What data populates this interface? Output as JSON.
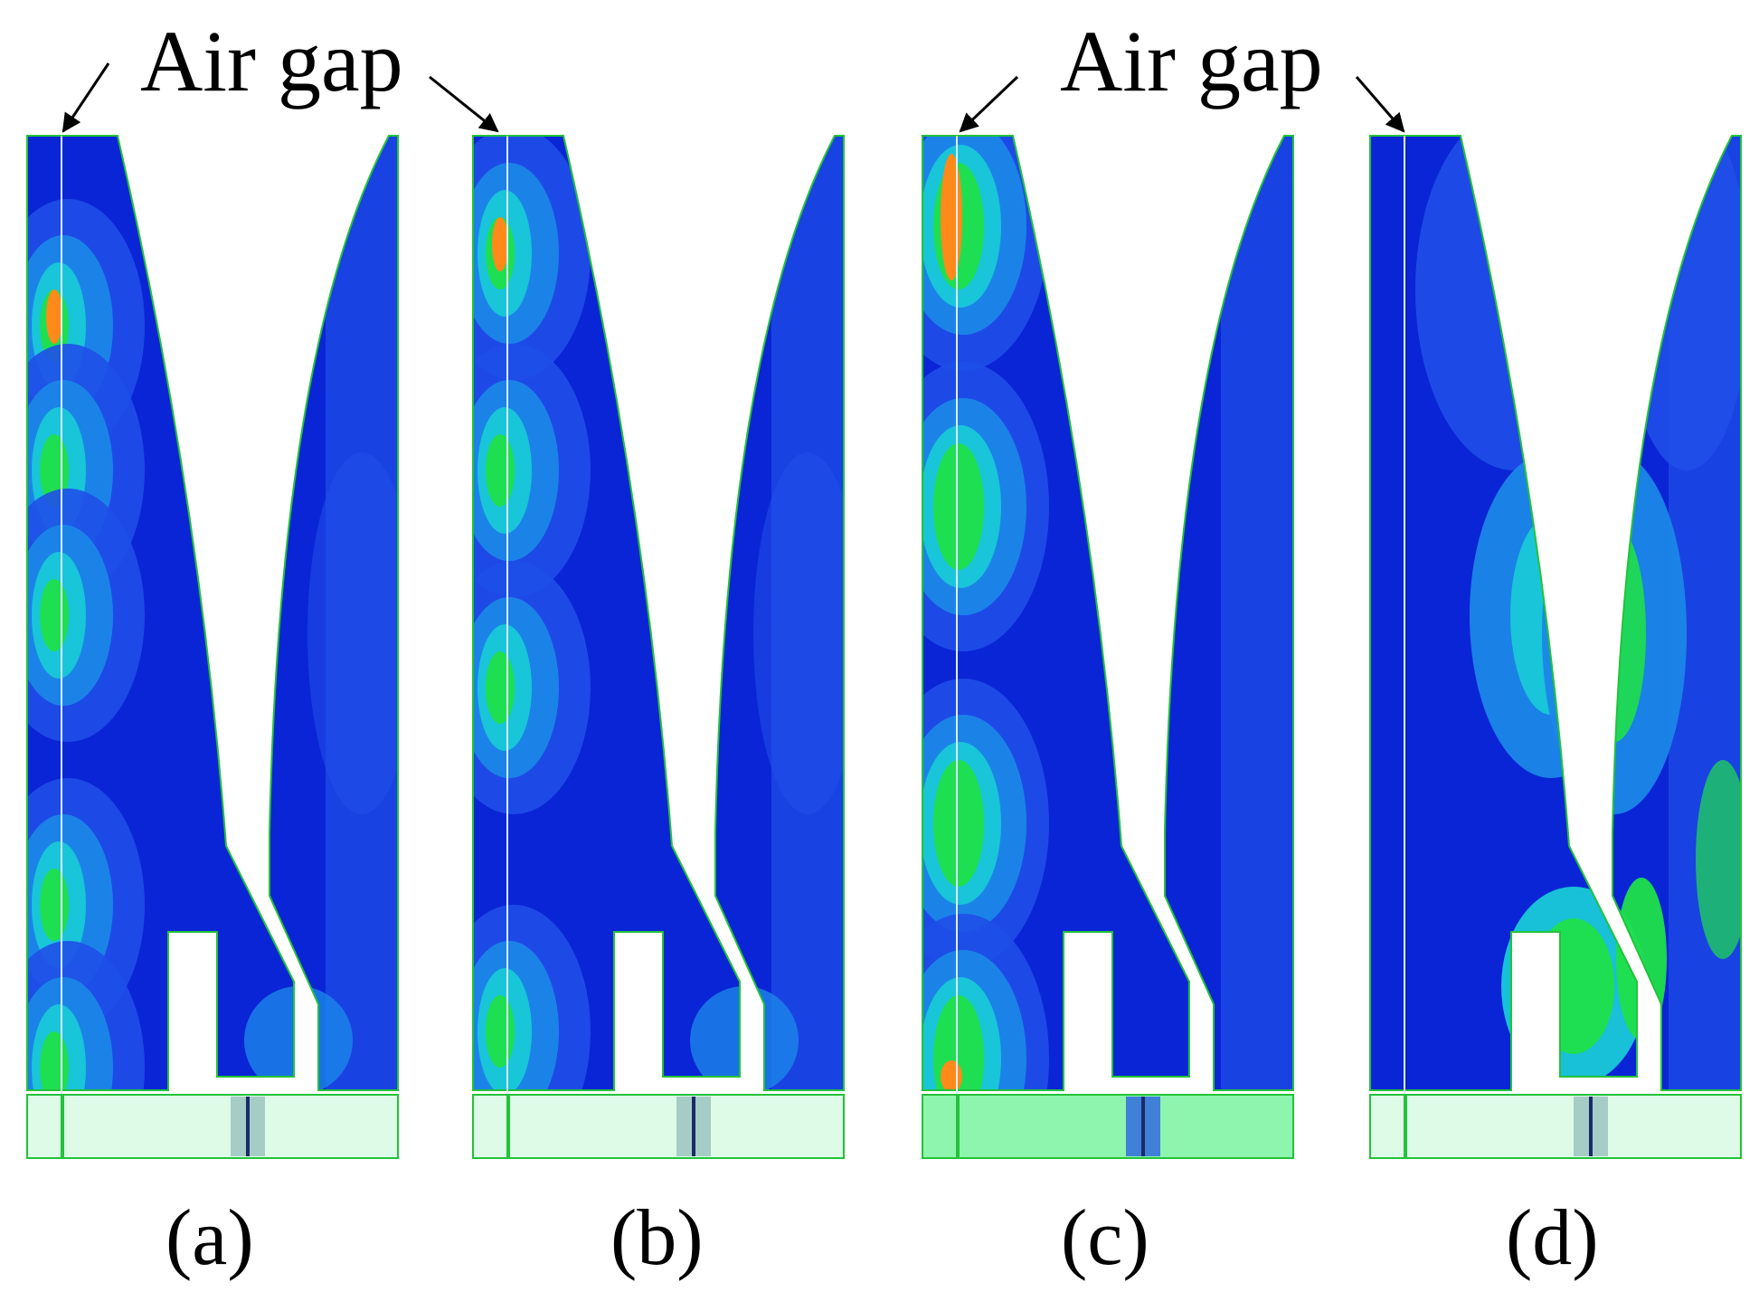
{
  "figure": {
    "annotation_label": "Air gap",
    "panels": [
      {
        "id": "a",
        "caption": "(a)",
        "colormap": "blue-dominant with hot spots near air gap",
        "base_plate_color": "#ddfbe6"
      },
      {
        "id": "b",
        "caption": "(b)",
        "colormap": "blue-dominant with hot spots near air gap",
        "base_plate_color": "#ddfbe6"
      },
      {
        "id": "c",
        "caption": "(c)",
        "colormap": "strong green/orange concentrations along air gap",
        "base_plate_color": "#8ef5ae"
      },
      {
        "id": "d",
        "caption": "(d)",
        "colormap": "green concentrations along tooth flanks and slot",
        "base_plate_color": "#ddfbe6"
      }
    ],
    "colors": {
      "background": "#ffffff",
      "field_dark_blue": "#0a25d6",
      "field_mid_blue": "#1f4fe8",
      "field_light_blue": "#1b86e8",
      "field_cyan": "#19c8d8",
      "field_green": "#1fe04a",
      "field_orange": "#ff8a1a",
      "outline_green": "#23c23a",
      "air_gap_line": "#d8f0ff"
    }
  }
}
